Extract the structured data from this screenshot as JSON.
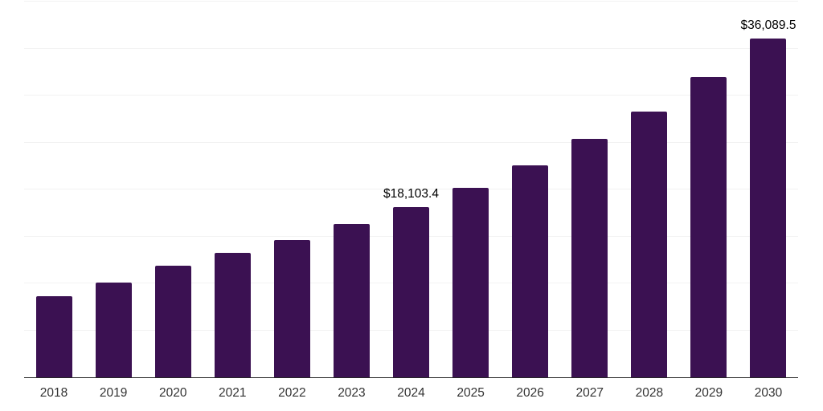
{
  "chart": {
    "colors": {
      "background": "#ffffff",
      "bar": "#3B1152",
      "gridline": "#f2f2f2",
      "axis_line": "#262626",
      "tick_label": "#333333",
      "data_label": "#000000"
    }
  },
  "chart_data": {
    "type": "bar",
    "title": "",
    "xlabel": "",
    "ylabel": "",
    "categories": [
      "2018",
      "2019",
      "2020",
      "2021",
      "2022",
      "2023",
      "2024",
      "2025",
      "2026",
      "2027",
      "2028",
      "2029",
      "2030"
    ],
    "values": [
      8600,
      10100,
      11900,
      13250,
      14650,
      16300,
      18103.4,
      20200,
      22550,
      25350,
      28300,
      32000,
      36089.5
    ],
    "labels": [
      "",
      "",
      "",
      "",
      "",
      "",
      "$18,103.4",
      "",
      "",
      "",
      "",
      "",
      "$36,089.5"
    ],
    "ylim": [
      0,
      40000
    ],
    "grid_step": 5000,
    "grid": "horizontal",
    "legend": "none",
    "y_tick_labels_visible": false
  }
}
